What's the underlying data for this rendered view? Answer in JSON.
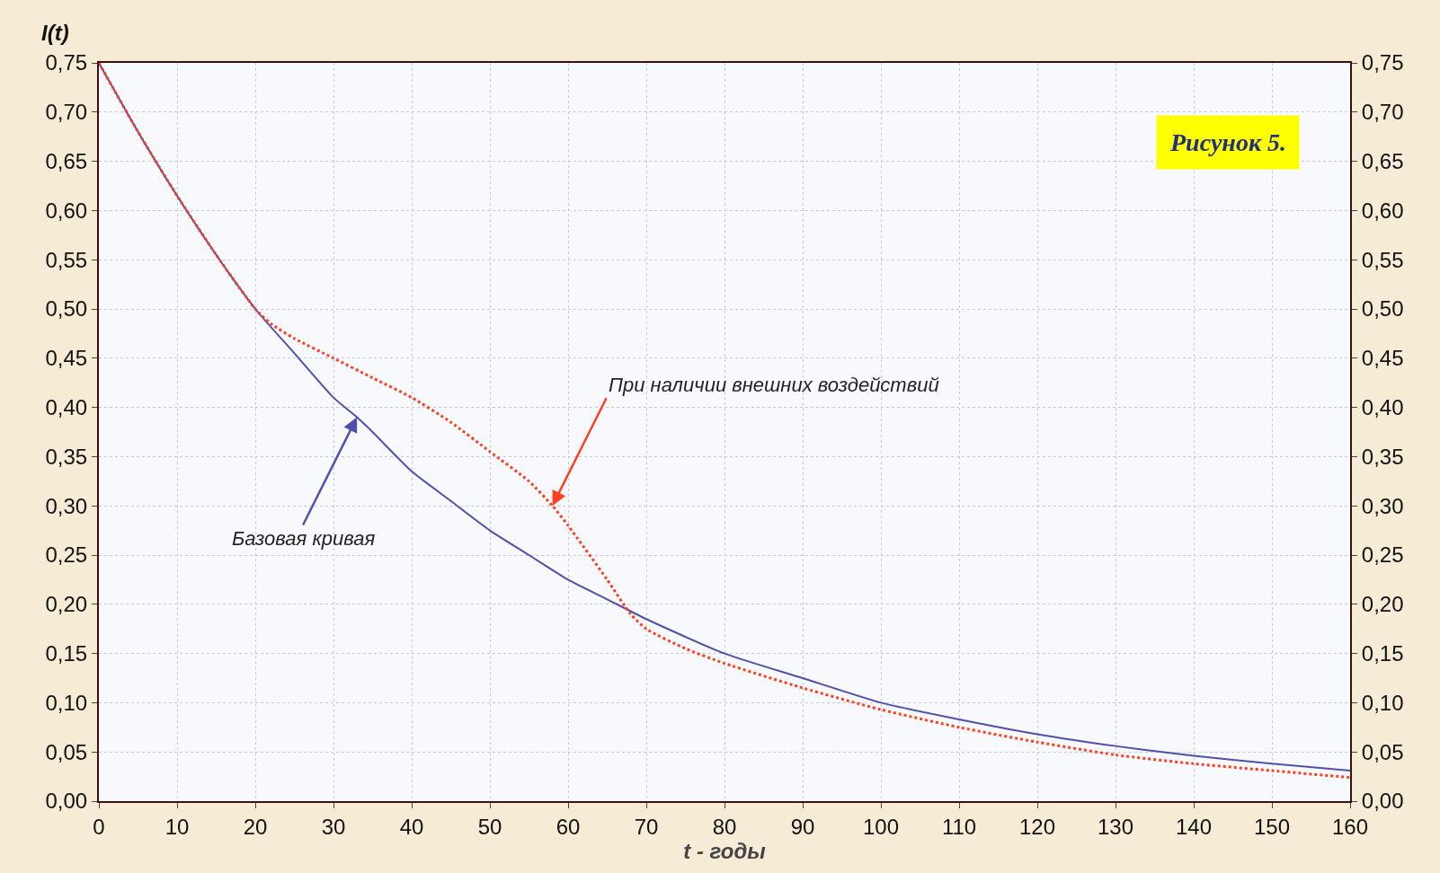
{
  "chart_data": {
    "type": "line",
    "title": "Рисунок 5.",
    "xlabel": "t - годы",
    "ylabel": "I(t)",
    "xlim": [
      0,
      160
    ],
    "xticks": [
      0,
      10,
      20,
      30,
      40,
      50,
      60,
      70,
      80,
      90,
      100,
      110,
      120,
      130,
      140,
      150,
      160
    ],
    "ylim": [
      0,
      0.75
    ],
    "yticks": [
      {
        "value": 0,
        "label": "0,00"
      },
      {
        "value": 0.05,
        "label": "0,05"
      },
      {
        "value": 0.1,
        "label": "0,10"
      },
      {
        "value": 0.15,
        "label": "0,15"
      },
      {
        "value": 0.2,
        "label": "0,20"
      },
      {
        "value": 0.25,
        "label": "0,25"
      },
      {
        "value": 0.3,
        "label": "0,30"
      },
      {
        "value": 0.35,
        "label": "0,35"
      },
      {
        "value": 0.4,
        "label": "0,40"
      },
      {
        "value": 0.45,
        "label": "0,45"
      },
      {
        "value": 0.5,
        "label": "0,50"
      },
      {
        "value": 0.55,
        "label": "0,55"
      },
      {
        "value": 0.6,
        "label": "0,60"
      },
      {
        "value": 0.65,
        "label": "0,65"
      },
      {
        "value": 0.7,
        "label": "0,70"
      },
      {
        "value": 0.75,
        "label": "0,75"
      }
    ],
    "y2lim": [
      0,
      0.75
    ],
    "y2ticks": [
      {
        "value": 0,
        "label": "0,00"
      },
      {
        "value": 0.05,
        "label": "0,05"
      },
      {
        "value": 0.1,
        "label": "0,10"
      },
      {
        "value": 0.15,
        "label": "0,15"
      },
      {
        "value": 0.2,
        "label": "0,20"
      },
      {
        "value": 0.25,
        "label": "0,25"
      },
      {
        "value": 0.3,
        "label": "0,30"
      },
      {
        "value": 0.35,
        "label": "0,35"
      },
      {
        "value": 0.4,
        "label": "0,40"
      },
      {
        "value": 0.45,
        "label": "0,45"
      },
      {
        "value": 0.5,
        "label": "0,50"
      },
      {
        "value": 0.55,
        "label": "0,55"
      },
      {
        "value": 0.6,
        "label": "0,60"
      },
      {
        "value": 0.65,
        "label": "0,65"
      },
      {
        "value": 0.7,
        "label": "0,70"
      },
      {
        "value": 0.75,
        "label": "0,75"
      }
    ],
    "grid": true,
    "marker": "none",
    "series": [
      {
        "color": "#5050a8",
        "line_style": "solid",
        "x": [
          0,
          5,
          10,
          15,
          20,
          25,
          30,
          33,
          35,
          40,
          45,
          50,
          55,
          60,
          65,
          70,
          80,
          90,
          100,
          110,
          120,
          130,
          140,
          150,
          160
        ],
        "values": [
          0.75,
          0.68,
          0.615,
          0.555,
          0.5,
          0.455,
          0.41,
          0.39,
          0.375,
          0.335,
          0.305,
          0.275,
          0.25,
          0.225,
          0.205,
          0.185,
          0.15,
          0.125,
          0.1,
          0.083,
          0.068,
          0.056,
          0.046,
          0.038,
          0.031
        ]
      },
      {
        "color": "#ff4020",
        "line_style": "dotted",
        "x": [
          0,
          5,
          10,
          15,
          20,
          22,
          25,
          30,
          35,
          40,
          45,
          50,
          55,
          58,
          60,
          65,
          68,
          70,
          75,
          80,
          90,
          100,
          110,
          120,
          130,
          140,
          150,
          160
        ],
        "values": [
          0.75,
          0.68,
          0.615,
          0.555,
          0.5,
          0.485,
          0.47,
          0.45,
          0.43,
          0.41,
          0.385,
          0.355,
          0.325,
          0.3,
          0.28,
          0.225,
          0.19,
          0.175,
          0.155,
          0.14,
          0.115,
          0.093,
          0.075,
          0.06,
          0.047,
          0.038,
          0.031,
          0.024
        ]
      }
    ],
    "annotations": [
      {
        "text": "Базовая кривая",
        "x": 33,
        "y": 0.39
      },
      {
        "text": "При наличии внешних воздействий",
        "x": 58,
        "y": 0.3
      }
    ]
  }
}
